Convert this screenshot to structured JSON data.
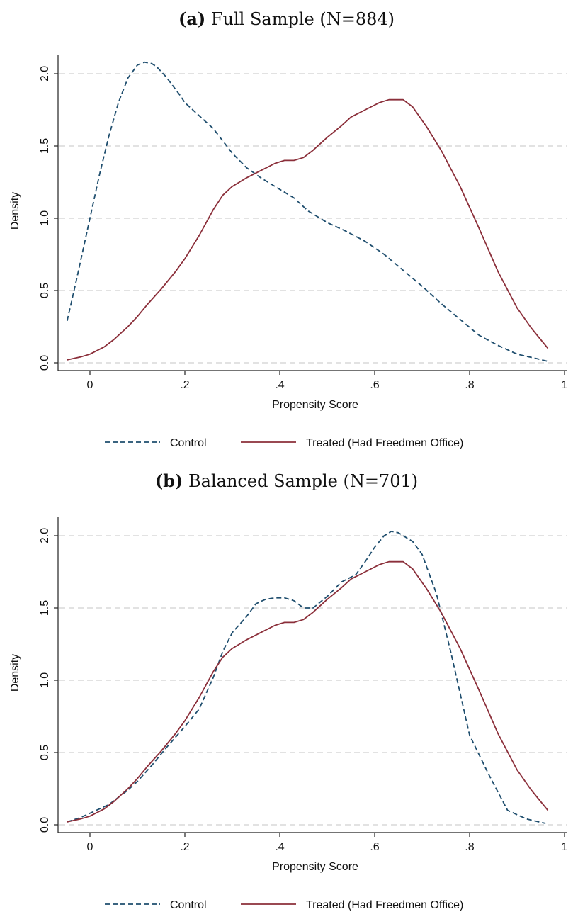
{
  "chart_data": [
    {
      "type": "line",
      "panel_label": "(a)",
      "title": "Full Sample (N=884)",
      "xlabel": "Propensity Score",
      "ylabel": "Density",
      "xlim": [
        -0.05,
        1
      ],
      "ylim": [
        0,
        2.1
      ],
      "x_ticks": [
        {
          "value": 0,
          "label": "0"
        },
        {
          "value": 0.2,
          "label": ".2"
        },
        {
          "value": 0.4,
          "label": ".4"
        },
        {
          "value": 0.6,
          "label": ".6"
        },
        {
          "value": 0.8,
          "label": ".8"
        },
        {
          "value": 1,
          "label": "1"
        }
      ],
      "y_ticks": [
        {
          "value": 0,
          "label": "0.0"
        },
        {
          "value": 0.5,
          "label": "0.5"
        },
        {
          "value": 1,
          "label": "1.0"
        },
        {
          "value": 1.5,
          "label": "1.5"
        },
        {
          "value": 2,
          "label": "2.0"
        }
      ],
      "grid": "horizontal dashed",
      "legend_position": "bottom",
      "series": [
        {
          "name": "Control",
          "color": "#1f4e6e",
          "style": "dashed",
          "x": [
            -0.048,
            -0.03,
            -0.01,
            0.0,
            0.02,
            0.04,
            0.06,
            0.08,
            0.1,
            0.115,
            0.13,
            0.14,
            0.16,
            0.19,
            0.2,
            0.23,
            0.26,
            0.3,
            0.33,
            0.36,
            0.4,
            0.43,
            0.46,
            0.5,
            0.54,
            0.58,
            0.62,
            0.66,
            0.7,
            0.74,
            0.78,
            0.82,
            0.86,
            0.9,
            0.94,
            0.965
          ],
          "y": [
            0.29,
            0.55,
            0.85,
            1.0,
            1.3,
            1.57,
            1.8,
            1.97,
            2.06,
            2.08,
            2.07,
            2.05,
            1.98,
            1.85,
            1.8,
            1.71,
            1.62,
            1.45,
            1.35,
            1.28,
            1.2,
            1.14,
            1.05,
            0.97,
            0.91,
            0.84,
            0.75,
            0.64,
            0.53,
            0.41,
            0.3,
            0.19,
            0.12,
            0.06,
            0.03,
            0.01
          ]
        },
        {
          "name": "Treated (Had Freedmen Office)",
          "color": "#8b2f3a",
          "style": "solid",
          "x": [
            -0.048,
            -0.02,
            0.0,
            0.03,
            0.05,
            0.08,
            0.1,
            0.12,
            0.15,
            0.18,
            0.2,
            0.23,
            0.26,
            0.28,
            0.3,
            0.33,
            0.36,
            0.39,
            0.41,
            0.43,
            0.45,
            0.47,
            0.5,
            0.53,
            0.55,
            0.58,
            0.61,
            0.63,
            0.66,
            0.68,
            0.71,
            0.74,
            0.78,
            0.82,
            0.86,
            0.9,
            0.93,
            0.965
          ],
          "y": [
            0.02,
            0.04,
            0.06,
            0.11,
            0.16,
            0.25,
            0.32,
            0.4,
            0.51,
            0.63,
            0.72,
            0.88,
            1.06,
            1.16,
            1.22,
            1.28,
            1.33,
            1.38,
            1.4,
            1.4,
            1.42,
            1.47,
            1.56,
            1.64,
            1.7,
            1.75,
            1.8,
            1.82,
            1.82,
            1.77,
            1.63,
            1.47,
            1.22,
            0.93,
            0.63,
            0.38,
            0.24,
            0.1
          ]
        }
      ]
    },
    {
      "type": "line",
      "panel_label": "(b)",
      "title": "Balanced Sample (N=701)",
      "xlabel": "Propensity Score",
      "ylabel": "Density",
      "xlim": [
        -0.05,
        1
      ],
      "ylim": [
        0,
        2.1
      ],
      "x_ticks": [
        {
          "value": 0,
          "label": "0"
        },
        {
          "value": 0.2,
          "label": ".2"
        },
        {
          "value": 0.4,
          "label": ".4"
        },
        {
          "value": 0.6,
          "label": ".6"
        },
        {
          "value": 0.8,
          "label": ".8"
        },
        {
          "value": 1,
          "label": "1"
        }
      ],
      "y_ticks": [
        {
          "value": 0,
          "label": "0.0"
        },
        {
          "value": 0.5,
          "label": "0.5"
        },
        {
          "value": 1,
          "label": "1.0"
        },
        {
          "value": 1.5,
          "label": "1.5"
        },
        {
          "value": 2,
          "label": "2.0"
        }
      ],
      "grid": "horizontal dashed",
      "legend_position": "bottom",
      "series": [
        {
          "name": "Control",
          "color": "#1f4e6e",
          "style": "dashed",
          "x": [
            -0.048,
            -0.02,
            0.0,
            0.04,
            0.08,
            0.1,
            0.13,
            0.16,
            0.2,
            0.23,
            0.26,
            0.28,
            0.3,
            0.33,
            0.35,
            0.37,
            0.39,
            0.41,
            0.43,
            0.45,
            0.47,
            0.5,
            0.53,
            0.56,
            0.58,
            0.6,
            0.62,
            0.635,
            0.65,
            0.68,
            0.7,
            0.73,
            0.76,
            0.8,
            0.84,
            0.88,
            0.92,
            0.96
          ],
          "y": [
            0.02,
            0.05,
            0.08,
            0.14,
            0.24,
            0.3,
            0.41,
            0.53,
            0.68,
            0.8,
            1.02,
            1.2,
            1.33,
            1.44,
            1.53,
            1.56,
            1.57,
            1.57,
            1.55,
            1.5,
            1.5,
            1.58,
            1.68,
            1.73,
            1.82,
            1.92,
            2.0,
            2.03,
            2.02,
            1.96,
            1.87,
            1.6,
            1.2,
            0.62,
            0.35,
            0.1,
            0.04,
            0.01
          ]
        },
        {
          "name": "Treated (Had Freedmen Office)",
          "color": "#8b2f3a",
          "style": "solid",
          "x": [
            -0.048,
            -0.02,
            0.0,
            0.03,
            0.05,
            0.08,
            0.1,
            0.12,
            0.15,
            0.18,
            0.2,
            0.23,
            0.26,
            0.28,
            0.3,
            0.33,
            0.36,
            0.39,
            0.41,
            0.43,
            0.45,
            0.47,
            0.5,
            0.53,
            0.55,
            0.58,
            0.61,
            0.63,
            0.66,
            0.68,
            0.71,
            0.74,
            0.78,
            0.82,
            0.86,
            0.9,
            0.93,
            0.965
          ],
          "y": [
            0.02,
            0.04,
            0.06,
            0.11,
            0.16,
            0.25,
            0.32,
            0.4,
            0.51,
            0.63,
            0.72,
            0.88,
            1.06,
            1.16,
            1.22,
            1.28,
            1.33,
            1.38,
            1.4,
            1.4,
            1.42,
            1.47,
            1.56,
            1.64,
            1.7,
            1.75,
            1.8,
            1.82,
            1.82,
            1.77,
            1.63,
            1.47,
            1.22,
            0.93,
            0.63,
            0.38,
            0.24,
            0.1
          ]
        }
      ]
    }
  ]
}
